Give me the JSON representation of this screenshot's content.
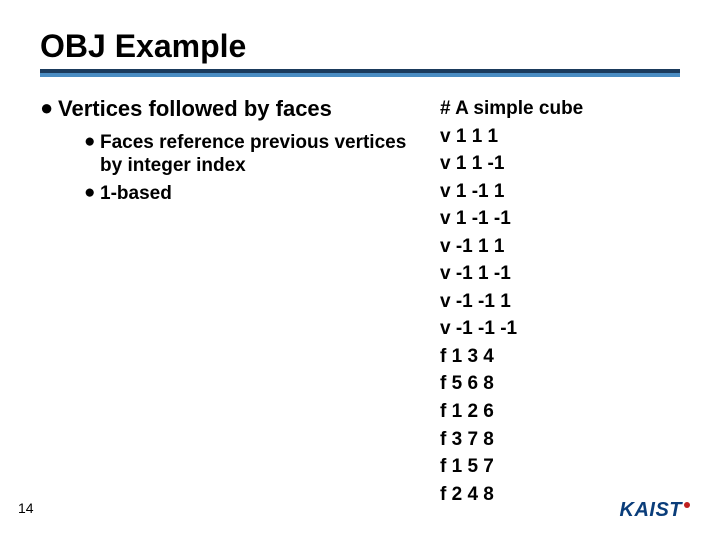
{
  "title": "OBJ Example",
  "colors": {
    "underline_dark": "#1a3a5c",
    "underline_light": "#4a8cc2",
    "text": "#000000",
    "logo_text": "#0a3d7a",
    "logo_dot": "#c02020",
    "background": "#ffffff"
  },
  "typography": {
    "title_fontsize": 32,
    "bullet_l1_fontsize": 22,
    "bullet_l2_fontsize": 19,
    "code_fontsize": 19,
    "pagenum_fontsize": 14
  },
  "bullets": {
    "l1": "Vertices followed by faces",
    "l2a": "Faces reference previous vertices by integer index",
    "l2b": "1-based"
  },
  "code": "# A simple cube\nv 1 1 1\nv 1 1 -1\nv 1 -1 1\nv 1 -1 -1\nv -1 1 1\nv -1 1 -1\nv -1 -1 1\nv -1 -1 -1\nf 1 3 4\nf 5 6 8\nf 1 2 6\nf 3 7 8\nf 1 5 7\nf 2 4 8",
  "page_number": "14",
  "logo": "KAIST"
}
